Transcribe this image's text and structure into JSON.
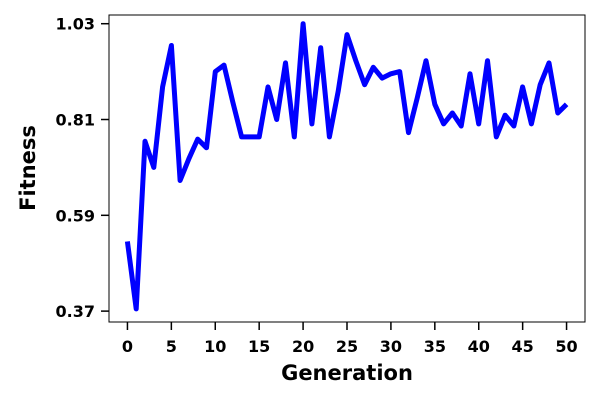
{
  "chart_data": {
    "type": "line",
    "title": "",
    "xlabel": "Generation",
    "ylabel": "Fitness",
    "xlim": [
      -2.1,
      52.1
    ],
    "ylim": [
      0.345,
      1.05
    ],
    "xticks": [
      0,
      5,
      10,
      15,
      20,
      25,
      30,
      35,
      40,
      45,
      50
    ],
    "xtick_labels": [
      "0",
      "5",
      "10",
      "15",
      "20",
      "25",
      "30",
      "35",
      "40",
      "45",
      "50"
    ],
    "yticks": [
      0.37,
      0.59,
      0.81,
      1.03
    ],
    "ytick_labels": [
      "0.37",
      "0.59",
      "0.81",
      "1.03"
    ],
    "grid": false,
    "legend": "none",
    "colors": {
      "line": "#0000ff",
      "axes": "#000000",
      "background": "#ffffff"
    },
    "series": [
      {
        "x": [
          0,
          1,
          2,
          3,
          4,
          5,
          6,
          7,
          8,
          9,
          10,
          11,
          12,
          13,
          14,
          15,
          16,
          17,
          18,
          19,
          20,
          21,
          22,
          23,
          24,
          25,
          26,
          27,
          28,
          29,
          30,
          31,
          32,
          33,
          34,
          35,
          36,
          37,
          38,
          39,
          40,
          41,
          42,
          43,
          44,
          45,
          46,
          47,
          48,
          49,
          50
        ],
        "values": [
          0.53,
          0.375,
          0.76,
          0.7,
          0.885,
          0.98,
          0.67,
          0.72,
          0.765,
          0.745,
          0.92,
          0.935,
          0.85,
          0.77,
          0.77,
          0.77,
          0.885,
          0.81,
          0.94,
          0.77,
          1.03,
          0.8,
          0.975,
          0.77,
          0.875,
          1.005,
          0.945,
          0.89,
          0.93,
          0.905,
          0.915,
          0.92,
          0.78,
          0.86,
          0.945,
          0.845,
          0.8,
          0.825,
          0.795,
          0.915,
          0.8,
          0.945,
          0.77,
          0.82,
          0.795,
          0.885,
          0.8,
          0.89,
          0.94,
          0.825,
          0.845
        ]
      }
    ]
  }
}
